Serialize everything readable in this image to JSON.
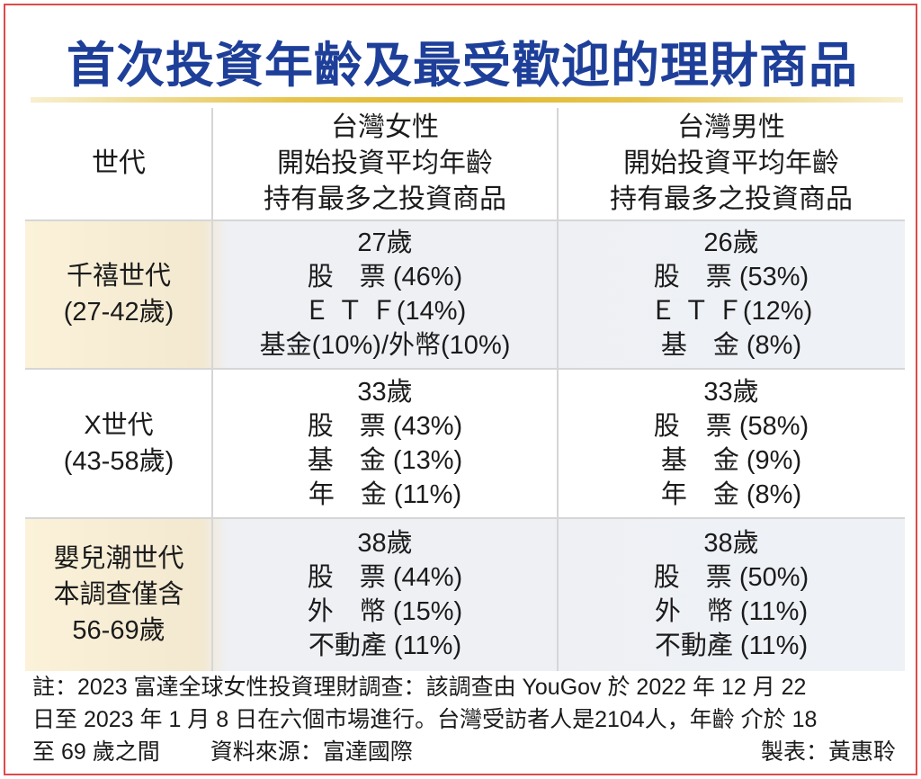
{
  "title": "首次投資年齡及最受歡迎的理財商品",
  "header": {
    "generation": "世代",
    "female": [
      "台灣女性",
      "開始投資平均年齡",
      "持有最多之投資商品"
    ],
    "male": [
      "台灣男性",
      "開始投資平均年齡",
      "持有最多之投資商品"
    ]
  },
  "rows": [
    {
      "generation": [
        "千禧世代",
        "(27-42歲)"
      ],
      "female": [
        "27歲",
        "股　票 (46%)",
        "Ｅ Ｔ Ｆ(14%)",
        "基金(10%)/外幣(10%)"
      ],
      "male": [
        "26歲",
        "股　票 (53%)",
        "Ｅ Ｔ Ｆ(12%)",
        "基　金 (8%)"
      ]
    },
    {
      "generation": [
        "X世代",
        "(43-58歲)"
      ],
      "female": [
        "33歲",
        "股　票 (43%)",
        "基　金 (13%)",
        "年　金 (11%)"
      ],
      "male": [
        "33歲",
        "股　票 (58%)",
        "基　金 (9%)",
        "年　金 (8%)"
      ]
    },
    {
      "generation": [
        "嬰兒潮世代",
        "本調查僅含",
        "56-69歲"
      ],
      "female": [
        "38歲",
        "股　票 (44%)",
        "外　幣 (15%)",
        "不動產 (11%)"
      ],
      "male": [
        "38歲",
        "股　票 (50%)",
        "外　幣 (11%)",
        "不動產 (11%)"
      ]
    }
  ],
  "note": {
    "line1": "註：2023 富達全球女性投資理財調查：該調查由 YouGov 於 2022 年 12 月 22",
    "line2": "日至 2023 年 1 月 8 日在六個市場進行。台灣受訪者人是2104人，年齡 介於 18",
    "line3": "至 69 歲之間",
    "source": "資料來源：富達國際",
    "credit": "製表：黃惠聆"
  },
  "colors": {
    "title": "#1e3f99",
    "border": "#e24a4a",
    "title_bar": "#e2b933",
    "gen_band": "#fbf2d9",
    "row_band": "#eef1f5"
  }
}
